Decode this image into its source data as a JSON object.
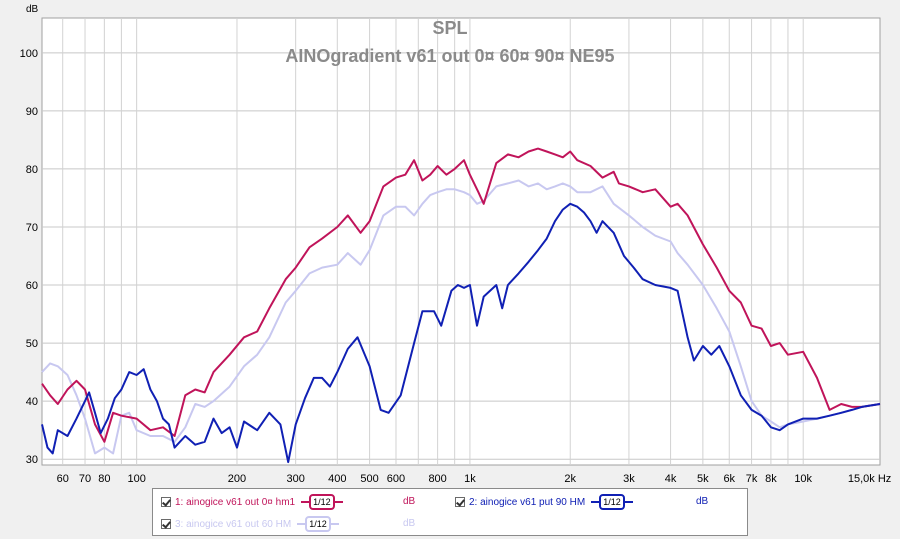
{
  "chart_data": {
    "type": "line",
    "title": "SPL",
    "subtitle": "AINOgradient v61 out 0¤ 60¤ 90¤  NE95",
    "ylabel": "dB",
    "xlabel_unit": "Hz",
    "x_scale": "log",
    "xlim": [
      52,
      17000
    ],
    "ylim": [
      29,
      106
    ],
    "grid": true,
    "y_ticks": [
      30,
      40,
      50,
      60,
      70,
      80,
      90,
      100
    ],
    "x_ticks": [
      {
        "value": 60,
        "label": "60"
      },
      {
        "value": 70,
        "label": "70"
      },
      {
        "value": 80,
        "label": "80"
      },
      {
        "value": 100,
        "label": "100"
      },
      {
        "value": 200,
        "label": "200"
      },
      {
        "value": 300,
        "label": "300"
      },
      {
        "value": 400,
        "label": "400"
      },
      {
        "value": 500,
        "label": "500"
      },
      {
        "value": 600,
        "label": "600"
      },
      {
        "value": 800,
        "label": "800"
      },
      {
        "value": 1000,
        "label": "1k"
      },
      {
        "value": 2000,
        "label": "2k"
      },
      {
        "value": 3000,
        "label": "3k"
      },
      {
        "value": 4000,
        "label": "4k"
      },
      {
        "value": 5000,
        "label": "5k"
      },
      {
        "value": 6000,
        "label": "6k"
      },
      {
        "value": 7000,
        "label": "7k"
      },
      {
        "value": 8000,
        "label": "8k"
      },
      {
        "value": 10000,
        "label": "10k"
      },
      {
        "value": 15000,
        "label": "15,0k Hz"
      }
    ],
    "series": [
      {
        "name": "1: ainogice v61 out 0¤ hm1",
        "color": "#c0145a",
        "points": [
          [
            52,
            43
          ],
          [
            55,
            41
          ],
          [
            58,
            39.5
          ],
          [
            62,
            42
          ],
          [
            66,
            43.5
          ],
          [
            70,
            42
          ],
          [
            75,
            36
          ],
          [
            80,
            33
          ],
          [
            85,
            38
          ],
          [
            90,
            37.5
          ],
          [
            100,
            37
          ],
          [
            110,
            35
          ],
          [
            120,
            35.5
          ],
          [
            130,
            34
          ],
          [
            140,
            41
          ],
          [
            150,
            42
          ],
          [
            160,
            41.5
          ],
          [
            170,
            45
          ],
          [
            190,
            48
          ],
          [
            210,
            51
          ],
          [
            230,
            52
          ],
          [
            250,
            56
          ],
          [
            280,
            61
          ],
          [
            300,
            63
          ],
          [
            330,
            66.5
          ],
          [
            360,
            68
          ],
          [
            400,
            70
          ],
          [
            430,
            72
          ],
          [
            470,
            69
          ],
          [
            500,
            71
          ],
          [
            550,
            77
          ],
          [
            600,
            78.5
          ],
          [
            640,
            79
          ],
          [
            680,
            81.5
          ],
          [
            720,
            78
          ],
          [
            760,
            79
          ],
          [
            800,
            80.5
          ],
          [
            850,
            79
          ],
          [
            900,
            80
          ],
          [
            960,
            81.5
          ],
          [
            1000,
            79
          ],
          [
            1060,
            76
          ],
          [
            1100,
            74
          ],
          [
            1200,
            81
          ],
          [
            1300,
            82.5
          ],
          [
            1400,
            82
          ],
          [
            1500,
            83
          ],
          [
            1600,
            83.5
          ],
          [
            1700,
            83
          ],
          [
            1800,
            82.5
          ],
          [
            1900,
            82
          ],
          [
            2000,
            83
          ],
          [
            2100,
            81.5
          ],
          [
            2300,
            80.5
          ],
          [
            2500,
            78.5
          ],
          [
            2700,
            79.5
          ],
          [
            2800,
            77.5
          ],
          [
            3000,
            77
          ],
          [
            3300,
            76
          ],
          [
            3600,
            76.5
          ],
          [
            4000,
            73.5
          ],
          [
            4200,
            74
          ],
          [
            4500,
            72
          ],
          [
            5000,
            67
          ],
          [
            5500,
            63
          ],
          [
            6000,
            59
          ],
          [
            6500,
            57
          ],
          [
            7000,
            53
          ],
          [
            7500,
            52.5
          ],
          [
            8000,
            49.5
          ],
          [
            8500,
            50
          ],
          [
            9000,
            48
          ],
          [
            10000,
            48.5
          ],
          [
            11000,
            44
          ],
          [
            12000,
            38.5
          ],
          [
            13000,
            39.5
          ],
          [
            14000,
            39
          ],
          [
            15000,
            39
          ],
          [
            17000,
            39.5
          ]
        ]
      },
      {
        "name": "2: ainogice v61 put 90 HM",
        "color": "#1020b4",
        "points": [
          [
            52,
            36
          ],
          [
            54,
            32
          ],
          [
            56,
            31
          ],
          [
            58,
            35
          ],
          [
            62,
            34
          ],
          [
            66,
            37
          ],
          [
            70,
            40
          ],
          [
            72,
            41.5
          ],
          [
            75,
            38
          ],
          [
            78,
            34.5
          ],
          [
            82,
            37
          ],
          [
            86,
            40.5
          ],
          [
            90,
            42
          ],
          [
            95,
            45
          ],
          [
            100,
            44.5
          ],
          [
            105,
            45.5
          ],
          [
            110,
            42
          ],
          [
            115,
            40
          ],
          [
            120,
            37
          ],
          [
            125,
            36
          ],
          [
            130,
            32
          ],
          [
            140,
            34
          ],
          [
            150,
            32.5
          ],
          [
            160,
            33
          ],
          [
            170,
            37
          ],
          [
            180,
            34.5
          ],
          [
            190,
            35.5
          ],
          [
            200,
            32
          ],
          [
            210,
            36.5
          ],
          [
            230,
            35
          ],
          [
            250,
            38
          ],
          [
            270,
            36
          ],
          [
            285,
            29.5
          ],
          [
            300,
            36
          ],
          [
            320,
            40.5
          ],
          [
            340,
            44
          ],
          [
            360,
            44
          ],
          [
            380,
            42.5
          ],
          [
            400,
            45
          ],
          [
            430,
            49
          ],
          [
            460,
            51
          ],
          [
            500,
            46
          ],
          [
            540,
            38.5
          ],
          [
            570,
            38
          ],
          [
            620,
            41
          ],
          [
            680,
            50
          ],
          [
            720,
            55.5
          ],
          [
            780,
            55.5
          ],
          [
            820,
            53
          ],
          [
            880,
            59
          ],
          [
            920,
            60
          ],
          [
            960,
            59.5
          ],
          [
            1000,
            60
          ],
          [
            1050,
            53
          ],
          [
            1100,
            58
          ],
          [
            1200,
            60
          ],
          [
            1250,
            56
          ],
          [
            1300,
            60
          ],
          [
            1400,
            62
          ],
          [
            1500,
            64
          ],
          [
            1600,
            66
          ],
          [
            1700,
            68
          ],
          [
            1800,
            71
          ],
          [
            1900,
            73
          ],
          [
            2000,
            74
          ],
          [
            2100,
            73.5
          ],
          [
            2200,
            72.5
          ],
          [
            2300,
            71
          ],
          [
            2400,
            69
          ],
          [
            2500,
            71
          ],
          [
            2700,
            69
          ],
          [
            2900,
            65
          ],
          [
            3100,
            63
          ],
          [
            3300,
            61
          ],
          [
            3600,
            60
          ],
          [
            4000,
            59.5
          ],
          [
            4200,
            59
          ],
          [
            4500,
            51
          ],
          [
            4700,
            47
          ],
          [
            5000,
            49.5
          ],
          [
            5300,
            48
          ],
          [
            5600,
            49.5
          ],
          [
            6000,
            46
          ],
          [
            6500,
            41
          ],
          [
            7000,
            38.5
          ],
          [
            7500,
            37.5
          ],
          [
            8000,
            35.5
          ],
          [
            8500,
            35
          ],
          [
            9000,
            36
          ],
          [
            10000,
            37
          ],
          [
            11000,
            37
          ],
          [
            12000,
            37.5
          ],
          [
            13000,
            38
          ],
          [
            14000,
            38.5
          ],
          [
            15000,
            39
          ],
          [
            17000,
            39.5
          ]
        ]
      },
      {
        "name": "3: ainogice v61 out 60 HM",
        "color": "#c8c8f0",
        "points": [
          [
            52,
            45
          ],
          [
            55,
            46.5
          ],
          [
            58,
            46
          ],
          [
            62,
            44.5
          ],
          [
            66,
            41
          ],
          [
            70,
            37
          ],
          [
            75,
            31
          ],
          [
            80,
            32
          ],
          [
            85,
            31
          ],
          [
            90,
            37.5
          ],
          [
            95,
            38
          ],
          [
            100,
            35
          ],
          [
            110,
            34
          ],
          [
            120,
            34
          ],
          [
            130,
            33
          ],
          [
            140,
            35.5
          ],
          [
            150,
            39.5
          ],
          [
            160,
            39
          ],
          [
            170,
            40
          ],
          [
            190,
            42.5
          ],
          [
            210,
            46
          ],
          [
            230,
            48
          ],
          [
            250,
            51
          ],
          [
            280,
            57
          ],
          [
            300,
            59
          ],
          [
            330,
            62
          ],
          [
            360,
            63
          ],
          [
            400,
            63.5
          ],
          [
            430,
            65.5
          ],
          [
            470,
            63.5
          ],
          [
            500,
            66
          ],
          [
            550,
            72
          ],
          [
            600,
            73.5
          ],
          [
            640,
            73.5
          ],
          [
            680,
            72
          ],
          [
            720,
            74
          ],
          [
            760,
            75.5
          ],
          [
            800,
            76
          ],
          [
            850,
            76.5
          ],
          [
            900,
            76.5
          ],
          [
            960,
            76
          ],
          [
            1000,
            75.5
          ],
          [
            1050,
            74
          ],
          [
            1100,
            74.5
          ],
          [
            1200,
            77
          ],
          [
            1300,
            77.5
          ],
          [
            1400,
            78
          ],
          [
            1500,
            77
          ],
          [
            1600,
            77.5
          ],
          [
            1700,
            76.5
          ],
          [
            1800,
            77
          ],
          [
            1900,
            77.5
          ],
          [
            2000,
            77
          ],
          [
            2100,
            76
          ],
          [
            2300,
            76
          ],
          [
            2500,
            77
          ],
          [
            2700,
            74
          ],
          [
            3000,
            72
          ],
          [
            3300,
            70
          ],
          [
            3600,
            68.5
          ],
          [
            4000,
            67.5
          ],
          [
            4200,
            65.5
          ],
          [
            4500,
            63.5
          ],
          [
            5000,
            60
          ],
          [
            5500,
            56
          ],
          [
            6000,
            52
          ],
          [
            6500,
            46
          ],
          [
            7000,
            40
          ],
          [
            7500,
            37.5
          ],
          [
            8000,
            36.5
          ],
          [
            8500,
            35.5
          ],
          [
            9000,
            36
          ],
          [
            10000,
            36.5
          ],
          [
            11000,
            37
          ],
          [
            12000,
            37.5
          ],
          [
            13000,
            38
          ],
          [
            14000,
            38.5
          ],
          [
            15000,
            39
          ],
          [
            17000,
            39.5
          ]
        ]
      }
    ]
  },
  "legend": {
    "entries": [
      {
        "label": "1: ainogice v61 out 0¤ hm1",
        "smoothing": "1/12",
        "unit": "dB",
        "color": "#c0145a"
      },
      {
        "label": "2: ainogice v61 put 90 HM",
        "smoothing": "1/12",
        "unit": "dB",
        "color": "#1020b4"
      },
      {
        "label": "3: ainogice v61 out 60 HM",
        "smoothing": "1/12",
        "unit": "dB",
        "color": "#c8c8f0"
      }
    ]
  }
}
